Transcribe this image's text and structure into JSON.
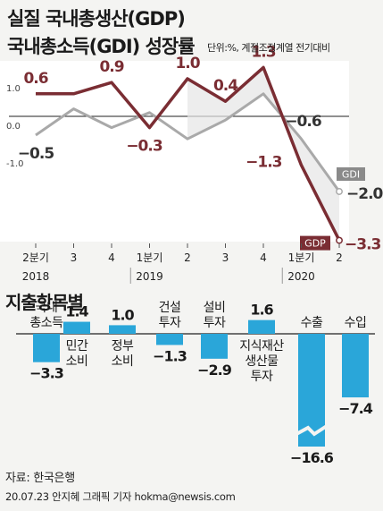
{
  "header": {
    "title_line1": "실질 국내총생산(GDP)",
    "title_line2": "국내총소득(GDI) 성장률",
    "unit": "단위:%, 계절조정계열 전기대비"
  },
  "colors": {
    "gdp_line": "#7a2d33",
    "gdi_line": "#a9a9a9",
    "bar": "#2aa6d9",
    "background": "#f4f4f2"
  },
  "chart_data": [
    {
      "type": "line",
      "categories": [
        "2분기",
        "3",
        "4",
        "1분기",
        "2",
        "3",
        "4",
        "1분기",
        "2"
      ],
      "year_labels": [
        {
          "label": "2018",
          "index": 0
        },
        {
          "label": "2019",
          "index": 3
        },
        {
          "label": "2020",
          "index": 7
        }
      ],
      "ylim": [
        -1.5,
        1.5
      ],
      "yticks": [
        {
          "value": 1.0,
          "label": "1.0"
        },
        {
          "value": 0.0,
          "label": "0.0"
        },
        {
          "value": -1.0,
          "label": "-1.0"
        }
      ],
      "series": [
        {
          "name": "GDP",
          "values": [
            0.6,
            0.6,
            0.9,
            -0.3,
            1.0,
            0.4,
            1.3,
            -1.3,
            -3.3
          ],
          "labels": [
            "0.6",
            "",
            "0.9",
            "−0.3",
            "1.0",
            "0.4",
            "1.3",
            "−1.3",
            "−3.3"
          ]
        },
        {
          "name": "GDI",
          "values": [
            -0.5,
            0.2,
            -0.3,
            0.1,
            -0.6,
            -0.1,
            0.6,
            -0.6,
            -2.0
          ],
          "labels": [
            "−0.5",
            "",
            "",
            "",
            "",
            "",
            "",
            "−0.6",
            "−2.0"
          ]
        }
      ]
    },
    {
      "type": "bar",
      "title": "지출항목별",
      "categories": [
        [
          "국내",
          "총소득"
        ],
        [
          "민간",
          "소비"
        ],
        [
          "정부",
          "소비"
        ],
        [
          "건설",
          "투자"
        ],
        [
          "설비",
          "투자"
        ],
        [
          "지식재산",
          "생산물",
          "투자"
        ],
        [
          "수출"
        ],
        [
          "수입"
        ]
      ],
      "values": [
        -3.3,
        1.4,
        1.0,
        -1.3,
        -2.9,
        1.6,
        -16.6,
        -7.4
      ],
      "value_labels": [
        "−3.3",
        "1.4",
        "1.0",
        "−1.3",
        "−2.9",
        "1.6",
        "−16.6",
        "−7.4"
      ],
      "truncated_index": 6
    }
  ],
  "footer": {
    "source": "자료: 한국은행",
    "credit": "20.07.23 안지혜 그래픽 기자 hokma@newsis.com"
  }
}
